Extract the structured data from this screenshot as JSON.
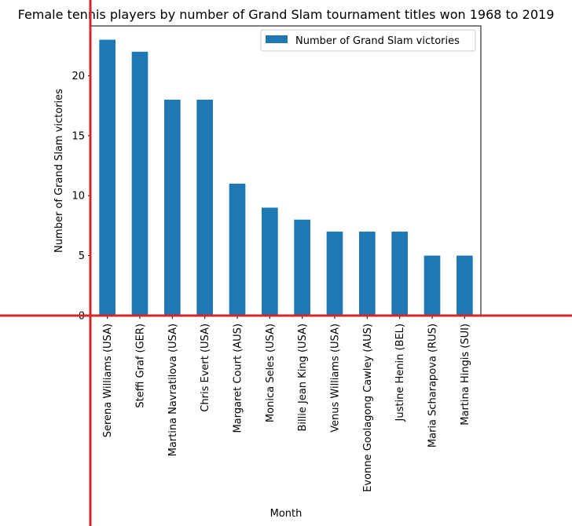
{
  "chart_data": {
    "type": "bar",
    "title": "Female tennis players by number of Grand Slam tournament titles won 1968 to 2019",
    "xlabel": "Month",
    "ylabel": "Number of Grand Slam victories",
    "ylim": [
      0,
      24.15
    ],
    "yticks": [
      0,
      5,
      10,
      15,
      20
    ],
    "legend_position": "top-right",
    "grid": false,
    "categories": [
      "Serena Williams (USA)",
      "Steffi Graf (GER)",
      "Martina Navratilova (USA)",
      "Chris Evert (USA)",
      "Margaret Court (AUS)",
      "Monica Seles (USA)",
      "Billie Jean King (USA)",
      "Venus Williams (USA)",
      "Evonne Goolagong Cawley (AUS)",
      "Justine Henin (BEL)",
      "Maria Scharapova (RUS)",
      "Martina Hingis (SUI)"
    ],
    "series": [
      {
        "name": "Number of Grand Slam victories",
        "color": "#1f77b4",
        "values": [
          23,
          22,
          18,
          18,
          11,
          9,
          8,
          7,
          7,
          7,
          5,
          5
        ]
      }
    ]
  }
}
